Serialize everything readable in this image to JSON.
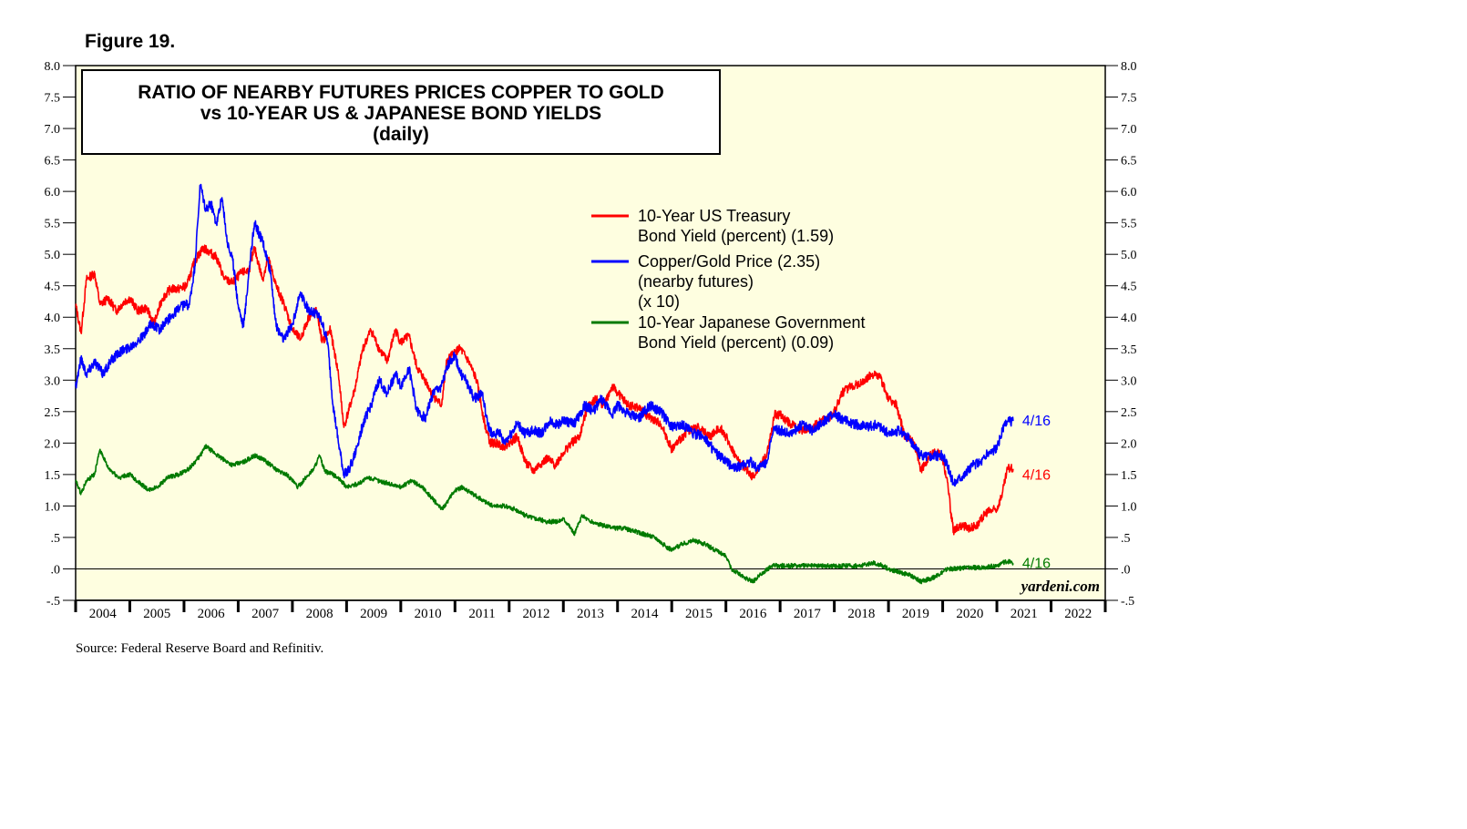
{
  "figure_label": "Figure 19.",
  "source": "Source: Federal Reserve Board and Refinitiv.",
  "watermark": "yardeni.com",
  "colors": {
    "plot_background": "#fefee0",
    "us_yield": "#ff0000",
    "copper_gold": "#0000ff",
    "japan_yield": "#007a00"
  },
  "chart_data": {
    "type": "line",
    "title": [
      "RATIO OF NEARBY FUTURES PRICES COPPER TO GOLD",
      "vs 10-YEAR US & JAPANESE BOND YIELDS",
      "(daily)"
    ],
    "xlim": [
      2004,
      2023
    ],
    "ylim": [
      -0.5,
      8.0
    ],
    "y_ticks": [
      8.0,
      7.5,
      7.0,
      6.5,
      6.0,
      5.5,
      5.0,
      4.5,
      4.0,
      3.5,
      3.0,
      2.5,
      2.0,
      1.5,
      1.0,
      0.5,
      0.0,
      -0.5
    ],
    "y_tick_labels": [
      "8.0",
      "7.5",
      "7.0",
      "6.5",
      "6.0",
      "5.5",
      "5.0",
      "4.5",
      "4.0",
      "3.5",
      "3.0",
      "2.5",
      "2.0",
      "1.5",
      "1.0",
      ".5",
      ".0",
      "-.5"
    ],
    "x_tick_labels": [
      "2004",
      "2005",
      "2006",
      "2007",
      "2008",
      "2009",
      "2010",
      "2011",
      "2012",
      "2013",
      "2014",
      "2015",
      "2016",
      "2017",
      "2018",
      "2019",
      "2020",
      "2021",
      "2022"
    ],
    "legend": [
      {
        "lines": [
          "10-Year US Treasury",
          "Bond Yield (percent) (1.59)"
        ]
      },
      {
        "lines": [
          "Copper/Gold Price (2.35)",
          "(nearby futures)",
          "(x 10)"
        ]
      },
      {
        "lines": [
          "10-Year Japanese Government",
          "Bond Yield (percent) (0.09)"
        ]
      }
    ],
    "series": [
      {
        "name": "10-Year US Treasury Bond Yield (percent)",
        "end_label": "4/16",
        "x": [
          2004.0,
          2004.1,
          2004.2,
          2004.35,
          2004.45,
          2004.6,
          2004.75,
          2004.9,
          2005.0,
          2005.15,
          2005.3,
          2005.45,
          2005.6,
          2005.75,
          2005.9,
          2006.05,
          2006.2,
          2006.35,
          2006.45,
          2006.6,
          2006.75,
          2006.9,
          2007.05,
          2007.2,
          2007.3,
          2007.45,
          2007.55,
          2007.7,
          2007.85,
          2008.0,
          2008.15,
          2008.3,
          2008.45,
          2008.55,
          2008.7,
          2008.85,
          2008.95,
          2009.0,
          2009.15,
          2009.3,
          2009.45,
          2009.6,
          2009.75,
          2009.9,
          2010.0,
          2010.15,
          2010.3,
          2010.45,
          2010.6,
          2010.75,
          2010.85,
          2011.0,
          2011.1,
          2011.25,
          2011.4,
          2011.55,
          2011.65,
          2011.75,
          2011.9,
          2012.0,
          2012.15,
          2012.3,
          2012.45,
          2012.55,
          2012.7,
          2012.85,
          2013.0,
          2013.15,
          2013.3,
          2013.45,
          2013.6,
          2013.75,
          2013.9,
          2014.0,
          2014.2,
          2014.4,
          2014.6,
          2014.8,
          2015.0,
          2015.1,
          2015.3,
          2015.5,
          2015.7,
          2015.9,
          2016.0,
          2016.2,
          2016.35,
          2016.5,
          2016.6,
          2016.75,
          2016.9,
          2017.0,
          2017.2,
          2017.4,
          2017.6,
          2017.75,
          2017.9,
          2018.0,
          2018.15,
          2018.3,
          2018.5,
          2018.7,
          2018.85,
          2019.0,
          2019.15,
          2019.3,
          2019.45,
          2019.6,
          2019.75,
          2019.9,
          2020.0,
          2020.1,
          2020.15,
          2020.2,
          2020.35,
          2020.5,
          2020.65,
          2020.8,
          2021.0,
          2021.1,
          2021.2,
          2021.3
        ],
        "values": [
          4.2,
          3.75,
          4.6,
          4.7,
          4.2,
          4.3,
          4.1,
          4.25,
          4.3,
          4.1,
          4.15,
          3.9,
          4.3,
          4.45,
          4.45,
          4.5,
          4.9,
          5.1,
          5.05,
          4.95,
          4.6,
          4.55,
          4.7,
          4.75,
          5.1,
          4.6,
          4.95,
          4.5,
          4.2,
          3.8,
          3.65,
          4.0,
          4.1,
          3.6,
          3.8,
          3.1,
          2.25,
          2.4,
          2.85,
          3.5,
          3.8,
          3.5,
          3.3,
          3.8,
          3.6,
          3.7,
          3.2,
          3.0,
          2.75,
          2.6,
          3.3,
          3.45,
          3.5,
          3.3,
          3.0,
          2.3,
          2.0,
          2.0,
          1.95,
          2.0,
          2.1,
          1.7,
          1.55,
          1.65,
          1.75,
          1.65,
          1.85,
          2.0,
          2.1,
          2.6,
          2.7,
          2.6,
          2.9,
          2.8,
          2.6,
          2.55,
          2.4,
          2.3,
          1.9,
          2.0,
          2.2,
          2.25,
          2.1,
          2.25,
          2.1,
          1.75,
          1.6,
          1.45,
          1.6,
          1.8,
          2.45,
          2.45,
          2.3,
          2.2,
          2.25,
          2.35,
          2.4,
          2.5,
          2.8,
          2.9,
          2.95,
          3.1,
          3.05,
          2.7,
          2.6,
          2.1,
          2.05,
          1.55,
          1.8,
          1.85,
          1.75,
          1.3,
          0.9,
          0.6,
          0.7,
          0.65,
          0.7,
          0.9,
          0.95,
          1.2,
          1.6,
          1.59
        ]
      },
      {
        "name": "Copper/Gold Price (nearby futures) (x 10)",
        "end_label": "4/16",
        "x": [
          2004.0,
          2004.1,
          2004.2,
          2004.35,
          2004.5,
          2004.65,
          2004.8,
          2004.95,
          2005.1,
          2005.25,
          2005.4,
          2005.55,
          2005.7,
          2005.85,
          2006.0,
          2006.1,
          2006.2,
          2006.3,
          2006.4,
          2006.5,
          2006.6,
          2006.7,
          2006.8,
          2006.9,
          2007.0,
          2007.1,
          2007.2,
          2007.3,
          2007.45,
          2007.6,
          2007.7,
          2007.85,
          2008.0,
          2008.15,
          2008.3,
          2008.45,
          2008.55,
          2008.65,
          2008.75,
          2008.85,
          2008.95,
          2009.05,
          2009.15,
          2009.3,
          2009.45,
          2009.6,
          2009.75,
          2009.9,
          2010.0,
          2010.15,
          2010.3,
          2010.45,
          2010.6,
          2010.75,
          2010.9,
          2011.0,
          2011.1,
          2011.2,
          2011.35,
          2011.5,
          2011.6,
          2011.7,
          2011.8,
          2011.9,
          2012.0,
          2012.15,
          2012.3,
          2012.45,
          2012.6,
          2012.75,
          2012.9,
          2013.0,
          2013.2,
          2013.4,
          2013.55,
          2013.7,
          2013.9,
          2014.0,
          2014.2,
          2014.4,
          2014.6,
          2014.8,
          2015.0,
          2015.2,
          2015.4,
          2015.6,
          2015.8,
          2016.0,
          2016.15,
          2016.3,
          2016.45,
          2016.6,
          2016.75,
          2016.9,
          2017.0,
          2017.2,
          2017.4,
          2017.6,
          2017.8,
          2018.0,
          2018.2,
          2018.4,
          2018.6,
          2018.8,
          2019.0,
          2019.2,
          2019.4,
          2019.6,
          2019.8,
          2020.0,
          2020.1,
          2020.2,
          2020.3,
          2020.4,
          2020.55,
          2020.7,
          2020.85,
          2021.0,
          2021.1,
          2021.2,
          2021.3
        ],
        "values": [
          2.9,
          3.35,
          3.1,
          3.3,
          3.1,
          3.3,
          3.45,
          3.5,
          3.6,
          3.7,
          3.9,
          3.8,
          3.95,
          4.1,
          4.2,
          4.2,
          4.8,
          6.1,
          5.7,
          5.8,
          5.5,
          5.9,
          5.2,
          4.9,
          4.2,
          3.85,
          4.75,
          5.5,
          5.2,
          4.7,
          3.85,
          3.65,
          3.9,
          4.4,
          4.1,
          4.05,
          3.9,
          3.6,
          2.6,
          2.0,
          1.5,
          1.6,
          1.8,
          2.3,
          2.6,
          3.0,
          2.8,
          3.1,
          2.9,
          3.2,
          2.5,
          2.4,
          2.8,
          2.9,
          3.3,
          3.4,
          3.1,
          3.0,
          2.7,
          2.8,
          2.3,
          2.1,
          2.2,
          2.0,
          2.1,
          2.3,
          2.15,
          2.2,
          2.15,
          2.35,
          2.3,
          2.35,
          2.3,
          2.6,
          2.5,
          2.7,
          2.45,
          2.6,
          2.45,
          2.4,
          2.6,
          2.5,
          2.25,
          2.3,
          2.15,
          2.1,
          1.85,
          1.7,
          1.6,
          1.65,
          1.7,
          1.6,
          1.7,
          2.25,
          2.2,
          2.15,
          2.3,
          2.2,
          2.35,
          2.45,
          2.35,
          2.3,
          2.25,
          2.3,
          2.15,
          2.2,
          2.05,
          1.8,
          1.8,
          1.8,
          1.6,
          1.35,
          1.45,
          1.5,
          1.65,
          1.7,
          1.85,
          1.9,
          2.2,
          2.35,
          2.35
        ]
      },
      {
        "name": "10-Year Japanese Government Bond Yield (percent)",
        "end_label": "4/16",
        "x": [
          2004.0,
          2004.1,
          2004.2,
          2004.35,
          2004.45,
          2004.6,
          2004.8,
          2005.0,
          2005.2,
          2005.35,
          2005.5,
          2005.7,
          2005.9,
          2006.1,
          2006.3,
          2006.4,
          2006.55,
          2006.7,
          2006.9,
          2007.1,
          2007.3,
          2007.45,
          2007.6,
          2007.75,
          2007.9,
          2008.1,
          2008.25,
          2008.4,
          2008.5,
          2008.6,
          2008.75,
          2008.9,
          2009.0,
          2009.2,
          2009.4,
          2009.6,
          2009.8,
          2010.0,
          2010.2,
          2010.4,
          2010.6,
          2010.75,
          2010.85,
          2011.0,
          2011.15,
          2011.3,
          2011.5,
          2011.7,
          2011.9,
          2012.1,
          2012.3,
          2012.5,
          2012.7,
          2012.9,
          2013.0,
          2013.1,
          2013.2,
          2013.35,
          2013.5,
          2013.7,
          2013.9,
          2014.1,
          2014.3,
          2014.5,
          2014.7,
          2014.9,
          2015.0,
          2015.2,
          2015.4,
          2015.6,
          2015.8,
          2016.0,
          2016.1,
          2016.2,
          2016.35,
          2016.5,
          2016.7,
          2016.85,
          2017.0,
          2017.3,
          2017.6,
          2017.9,
          2018.2,
          2018.5,
          2018.7,
          2018.9,
          2019.0,
          2019.2,
          2019.4,
          2019.6,
          2019.8,
          2020.0,
          2020.1,
          2020.2,
          2020.4,
          2020.6,
          2020.8,
          2021.0,
          2021.1,
          2021.2,
          2021.3
        ],
        "values": [
          1.4,
          1.2,
          1.4,
          1.5,
          1.9,
          1.6,
          1.45,
          1.5,
          1.35,
          1.25,
          1.3,
          1.45,
          1.5,
          1.6,
          1.8,
          1.95,
          1.85,
          1.75,
          1.65,
          1.7,
          1.8,
          1.75,
          1.65,
          1.55,
          1.5,
          1.3,
          1.45,
          1.6,
          1.8,
          1.55,
          1.5,
          1.4,
          1.3,
          1.35,
          1.45,
          1.4,
          1.35,
          1.3,
          1.4,
          1.3,
          1.1,
          0.95,
          1.05,
          1.25,
          1.3,
          1.2,
          1.1,
          1.0,
          1.0,
          0.95,
          0.85,
          0.8,
          0.75,
          0.75,
          0.8,
          0.7,
          0.55,
          0.85,
          0.75,
          0.7,
          0.65,
          0.65,
          0.6,
          0.55,
          0.5,
          0.35,
          0.3,
          0.4,
          0.45,
          0.4,
          0.3,
          0.2,
          0.0,
          -0.05,
          -0.15,
          -0.2,
          -0.05,
          0.05,
          0.05,
          0.05,
          0.05,
          0.05,
          0.05,
          0.05,
          0.1,
          0.05,
          0.0,
          -0.05,
          -0.1,
          -0.2,
          -0.15,
          -0.05,
          0.0,
          0.0,
          0.02,
          0.02,
          0.03,
          0.05,
          0.1,
          0.12,
          0.09
        ]
      }
    ]
  }
}
